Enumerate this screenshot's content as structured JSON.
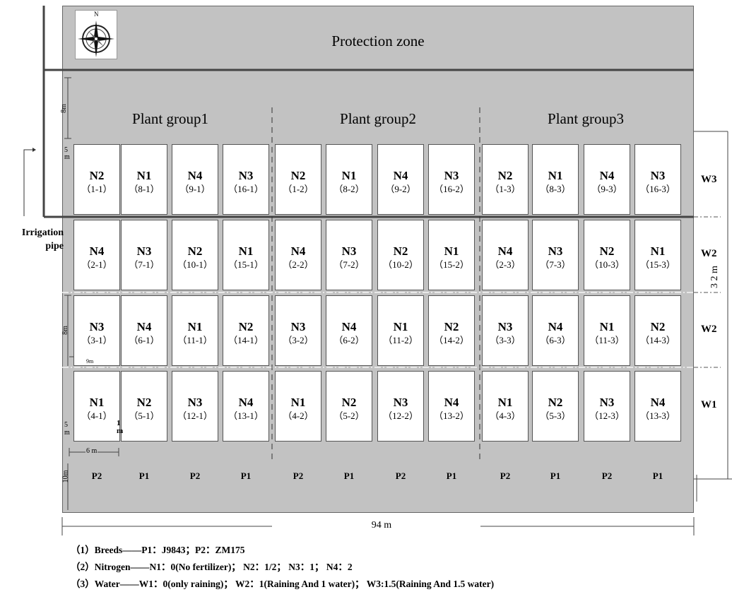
{
  "protection_zone": "Protection zone",
  "compass_label": "N",
  "groups": [
    "Plant group1",
    "Plant group2",
    "Plant group3"
  ],
  "rows": [
    {
      "water": "W3",
      "plots": [
        {
          "n": "N2",
          "code": "（1-1）"
        },
        {
          "n": "N1",
          "code": "（8-1）"
        },
        {
          "n": "N4",
          "code": "（9-1）"
        },
        {
          "n": "N3",
          "code": "（16-1）"
        },
        {
          "n": "N2",
          "code": "（1-2）"
        },
        {
          "n": "N1",
          "code": "（8-2）"
        },
        {
          "n": "N4",
          "code": "（9-2）"
        },
        {
          "n": "N3",
          "code": "（16-2）"
        },
        {
          "n": "N2",
          "code": "（1-3）"
        },
        {
          "n": "N1",
          "code": "（8-3）"
        },
        {
          "n": "N4",
          "code": "（9-3）"
        },
        {
          "n": "N3",
          "code": "（16-3）"
        }
      ]
    },
    {
      "water": "W2",
      "plots": [
        {
          "n": "N4",
          "code": "（2-1）"
        },
        {
          "n": "N3",
          "code": "（7-1）"
        },
        {
          "n": "N2",
          "code": "（10-1）"
        },
        {
          "n": "N1",
          "code": "（15-1）"
        },
        {
          "n": "N4",
          "code": "（2-2）"
        },
        {
          "n": "N3",
          "code": "（7-2）"
        },
        {
          "n": "N2",
          "code": "（10-2）"
        },
        {
          "n": "N1",
          "code": "（15-2）"
        },
        {
          "n": "N4",
          "code": "（2-3）"
        },
        {
          "n": "N3",
          "code": "（7-3）"
        },
        {
          "n": "N2",
          "code": "（10-3）"
        },
        {
          "n": "N1",
          "code": "（15-3）"
        }
      ]
    },
    {
      "water": "W2",
      "plots": [
        {
          "n": "N3",
          "code": "（3-1）"
        },
        {
          "n": "N4",
          "code": "（6-1）"
        },
        {
          "n": "N1",
          "code": "（11-1）"
        },
        {
          "n": "N2",
          "code": "（14-1）"
        },
        {
          "n": "N3",
          "code": "（3-2）"
        },
        {
          "n": "N4",
          "code": "（6-2）"
        },
        {
          "n": "N1",
          "code": "（11-2）"
        },
        {
          "n": "N2",
          "code": "（14-2）"
        },
        {
          "n": "N3",
          "code": "（3-3）"
        },
        {
          "n": "N4",
          "code": "（6-3）"
        },
        {
          "n": "N1",
          "code": "（11-3）"
        },
        {
          "n": "N2",
          "code": "（14-3）"
        }
      ]
    },
    {
      "water": "W1",
      "plots": [
        {
          "n": "N1",
          "code": "（4-1）"
        },
        {
          "n": "N2",
          "code": "（5-1）"
        },
        {
          "n": "N3",
          "code": "（12-1）"
        },
        {
          "n": "N4",
          "code": "（13-1）"
        },
        {
          "n": "N1",
          "code": "（4-2）"
        },
        {
          "n": "N2",
          "code": "（5-2）"
        },
        {
          "n": "N3",
          "code": "（12-2）"
        },
        {
          "n": "N4",
          "code": "（13-2）"
        },
        {
          "n": "N1",
          "code": "（4-3）"
        },
        {
          "n": "N2",
          "code": "（5-3）"
        },
        {
          "n": "N3",
          "code": "（12-3）"
        },
        {
          "n": "N4",
          "code": "（13-3）"
        }
      ]
    }
  ],
  "breeds_row": [
    "P2",
    "P1",
    "P2",
    "P1",
    "P2",
    "P1",
    "P2",
    "P1",
    "P2",
    "P1",
    "P2",
    "P1"
  ],
  "irrigation_label": "Irrigation pipe",
  "dims": {
    "top_8m": "8m",
    "five_m": "5 m",
    "row_8m": "8m",
    "nine_m": "9m",
    "one_m": "1 m",
    "five_m_b": "5 m",
    "six_m": "6 m",
    "ten_m": "10m",
    "total_width": "94 m",
    "right_vertical": "3 2 m"
  },
  "legend": [
    "（1）Breeds——P1：J9843；P2：ZM175",
    "（2）Nitrogen——N1：0(No fertilizer)； N2：1/2； N3：1； N4：2",
    "（3）Water——W1：0(only raining)； W2：1(Raining And 1 water)； W3:1.5(Raining And 1.5 water)"
  ]
}
